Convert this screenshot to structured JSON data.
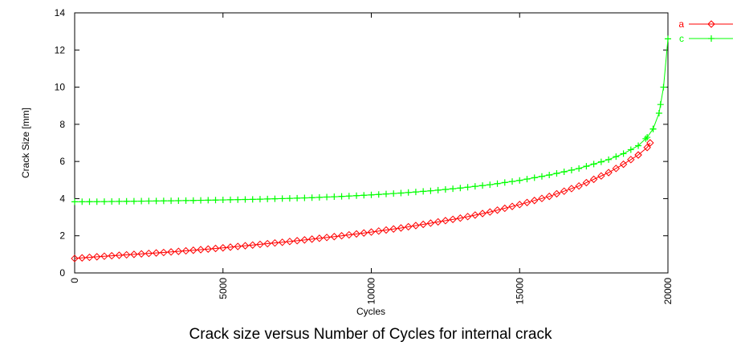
{
  "caption": "Crack size versus Number of Cycles for internal crack",
  "chart_data": {
    "type": "line",
    "xlabel": "Cycles",
    "ylabel": "Crack Size [mm]",
    "xlim": [
      0,
      20000
    ],
    "ylim": [
      0,
      14
    ],
    "x_ticks": [
      "0",
      "5000",
      "10000",
      "15000",
      "20000"
    ],
    "y_ticks": [
      "0",
      "2",
      "4",
      "6",
      "8",
      "10",
      "12",
      "14"
    ],
    "grid": false,
    "legend_position": "top-right outside",
    "series": [
      {
        "name": "a",
        "color": "#ff0000",
        "marker": "diamond",
        "x": [
          0,
          1000,
          2000,
          3000,
          4000,
          5000,
          6000,
          7000,
          8000,
          9000,
          10000,
          11000,
          12000,
          13000,
          14000,
          15000,
          16000,
          17000,
          18000,
          18500,
          19000,
          19300,
          19400
        ],
        "y": [
          0.78,
          0.9,
          1.0,
          1.1,
          1.22,
          1.35,
          1.5,
          1.65,
          1.82,
          2.0,
          2.2,
          2.42,
          2.68,
          2.95,
          3.28,
          3.68,
          4.12,
          4.68,
          5.4,
          5.85,
          6.35,
          6.75,
          7.0
        ]
      },
      {
        "name": "c",
        "color": "#00ff00",
        "marker": "plus",
        "x": [
          0,
          1000,
          2000,
          3000,
          4000,
          5000,
          6000,
          7000,
          8000,
          9000,
          10000,
          11000,
          12000,
          13000,
          14000,
          15000,
          16000,
          17000,
          18000,
          18500,
          19000,
          19300,
          19500,
          19700,
          19850,
          20000
        ],
        "y": [
          3.83,
          3.84,
          3.86,
          3.88,
          3.9,
          3.93,
          3.96,
          4.0,
          4.05,
          4.12,
          4.2,
          4.3,
          4.42,
          4.57,
          4.75,
          4.98,
          5.27,
          5.62,
          6.1,
          6.42,
          6.85,
          7.3,
          7.75,
          8.6,
          10.0,
          12.6
        ]
      }
    ]
  }
}
